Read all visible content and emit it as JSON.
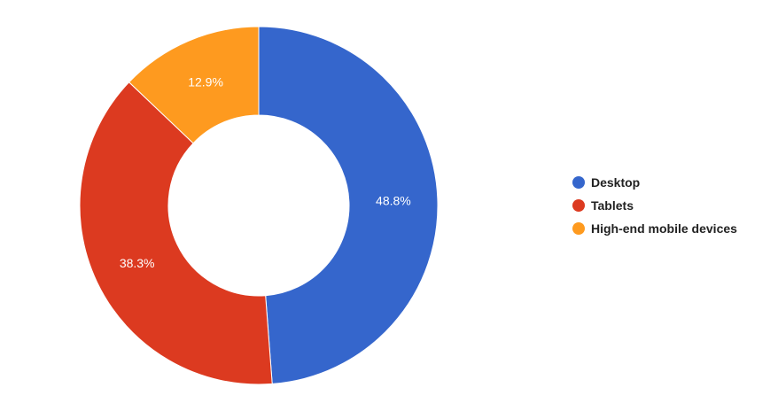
{
  "chart_data": {
    "type": "pie",
    "donut": true,
    "categories": [
      "Desktop",
      "Tablets",
      "High-end mobile devices"
    ],
    "values": [
      48.8,
      38.3,
      12.9
    ],
    "labels": [
      "48.8%",
      "38.3%",
      "12.9%"
    ],
    "colors": [
      "#3566CC",
      "#DC3A20",
      "#FE9A1F"
    ],
    "legend_position": "right"
  }
}
